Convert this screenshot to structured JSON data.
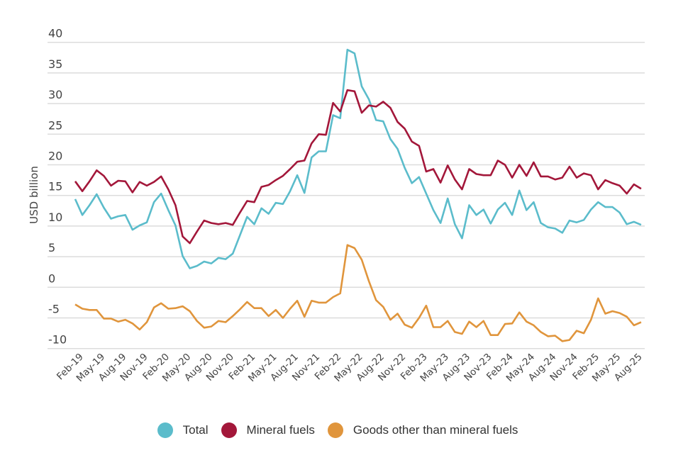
{
  "chart_data": {
    "type": "line",
    "title": "",
    "xlabel": "",
    "ylabel": "USD billion",
    "ylim": [
      -10,
      40
    ],
    "yticks": [
      40,
      35,
      30,
      25,
      20,
      15,
      10,
      5,
      0,
      -5,
      -10
    ],
    "grid": "horizontal",
    "legend": "bottom-center",
    "x_start": "Feb-19",
    "xtick_labels": [
      "Feb-19",
      "May-19",
      "Aug-19",
      "Nov-19",
      "Feb-20",
      "May-20",
      "Aug-20",
      "Nov-20",
      "Feb-21",
      "May-21",
      "Aug-21",
      "Nov-21",
      "Feb-22",
      "May-22",
      "Aug-22",
      "Nov-22",
      "Feb-23",
      "May-23",
      "Aug-23",
      "Nov-23",
      "Feb-24",
      "May-24",
      "Aug-24",
      "Nov-24",
      "Feb-25",
      "May-25",
      "Aug-25"
    ],
    "series": [
      {
        "name": "Total",
        "color": "#5bbccb",
        "values": [
          14.4,
          11.8,
          13.4,
          15.2,
          13.0,
          11.2,
          11.6,
          11.8,
          9.4,
          10.1,
          10.6,
          13.9,
          15.3,
          12.6,
          10.1,
          5.1,
          3.1,
          3.5,
          4.2,
          3.9,
          4.8,
          4.6,
          5.5,
          8.5,
          11.5,
          10.3,
          12.9,
          12.0,
          13.8,
          13.6,
          15.7,
          18.3,
          15.4,
          21.2,
          22.2,
          22.2,
          28.1,
          27.6,
          38.8,
          38.2,
          32.8,
          30.7,
          27.3,
          27.1,
          24.2,
          22.6,
          19.5,
          17.0,
          18.0,
          15.3,
          12.6,
          10.5,
          14.5,
          10.3,
          8.0,
          13.4,
          11.8,
          12.7,
          10.4,
          12.7,
          13.8,
          11.8,
          15.8,
          12.6,
          13.9,
          10.5,
          9.8,
          9.6,
          8.9,
          10.9,
          10.6,
          11.0,
          12.7,
          13.9,
          13.1,
          13.1,
          12.2,
          10.3,
          10.7,
          10.2
        ]
      },
      {
        "name": "Mineral fuels",
        "color": "#a3173a",
        "values": [
          17.3,
          15.7,
          17.3,
          19.1,
          18.2,
          16.6,
          17.4,
          17.3,
          15.5,
          17.2,
          16.6,
          17.2,
          18.1,
          16.0,
          13.4,
          8.3,
          7.2,
          9.1,
          10.9,
          10.5,
          10.3,
          10.5,
          10.2,
          12.2,
          14.1,
          13.9,
          16.4,
          16.7,
          17.5,
          18.2,
          19.3,
          20.5,
          20.7,
          23.5,
          25.0,
          24.9,
          30.1,
          28.7,
          32.2,
          32.0,
          28.5,
          29.7,
          29.5,
          30.3,
          29.3,
          27.0,
          25.9,
          23.8,
          23.1,
          18.9,
          19.3,
          17.1,
          19.9,
          17.6,
          16.0,
          19.3,
          18.5,
          18.3,
          18.3,
          20.7,
          20.0,
          17.9,
          20.0,
          18.2,
          20.4,
          18.1,
          18.1,
          17.6,
          17.9,
          19.7,
          17.9,
          18.6,
          18.3,
          16.0,
          17.5,
          17.0,
          16.6,
          15.3,
          16.8,
          16.1
        ]
      },
      {
        "name": "Goods other than mineral fuels",
        "color": "#e0953c",
        "values": [
          -2.8,
          -3.5,
          -3.7,
          -3.7,
          -5.1,
          -5.1,
          -5.6,
          -5.3,
          -5.9,
          -6.9,
          -5.7,
          -3.3,
          -2.6,
          -3.5,
          -3.4,
          -3.1,
          -3.9,
          -5.5,
          -6.6,
          -6.4,
          -5.5,
          -5.7,
          -4.7,
          -3.6,
          -2.4,
          -3.4,
          -3.4,
          -4.7,
          -3.7,
          -5.0,
          -3.5,
          -2.2,
          -4.8,
          -2.2,
          -2.5,
          -2.5,
          -1.6,
          -1.0,
          6.9,
          6.4,
          4.5,
          1.0,
          -2.1,
          -3.2,
          -5.3,
          -4.3,
          -6.1,
          -6.6,
          -5.0,
          -3.0,
          -6.5,
          -6.5,
          -5.5,
          -7.3,
          -7.6,
          -5.6,
          -6.5,
          -5.5,
          -7.8,
          -7.8,
          -6.0,
          -5.9,
          -4.1,
          -5.6,
          -6.2,
          -7.3,
          -8.0,
          -7.9,
          -8.8,
          -8.6,
          -7.1,
          -7.5,
          -5.3,
          -1.8,
          -4.3,
          -3.9,
          -4.2,
          -4.8,
          -6.2,
          -5.7
        ]
      }
    ]
  }
}
